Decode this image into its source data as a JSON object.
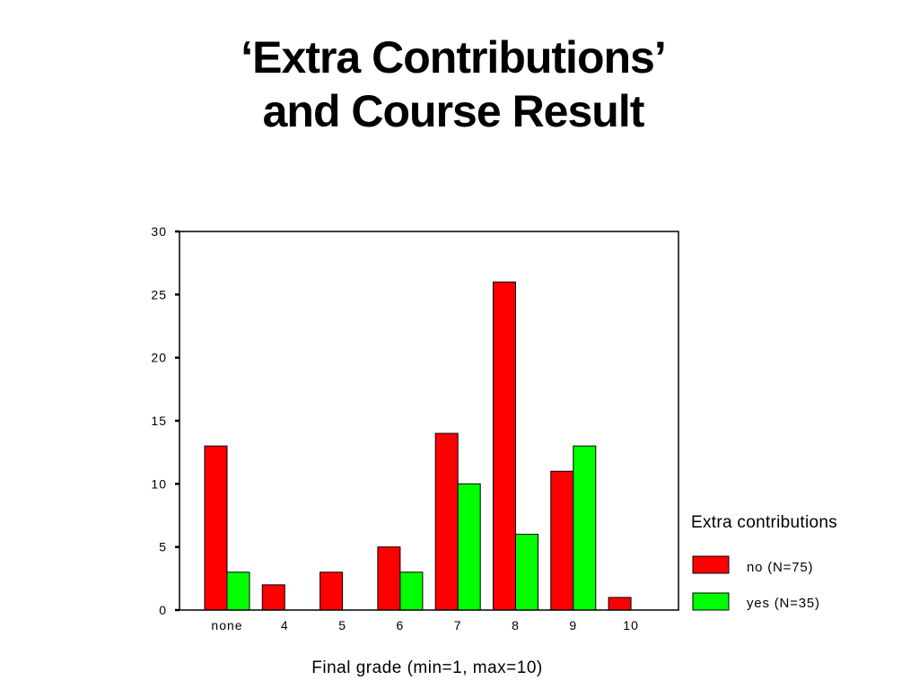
{
  "slide": {
    "title_line1": "‘Extra Contributions’",
    "title_line2": "and Course Result"
  },
  "chart_data": {
    "type": "bar",
    "categories": [
      "none",
      "4",
      "5",
      "6",
      "7",
      "8",
      "9",
      "10"
    ],
    "series": [
      {
        "name": "no  (N=75)",
        "color": "#ff0000",
        "values": [
          13,
          2,
          3,
          5,
          14,
          26,
          11,
          1
        ]
      },
      {
        "name": "yes  (N=35)",
        "color": "#00ff00",
        "values": [
          3,
          0,
          0,
          3,
          10,
          6,
          13,
          0
        ]
      }
    ],
    "xlabel": "Final grade (min=1, max=10)",
    "ylabel": "",
    "ylim": [
      0,
      30
    ],
    "yticks": [
      0,
      5,
      10,
      15,
      20,
      25,
      30
    ],
    "legend_title": "Extra contributions",
    "legend_position": "right",
    "grid": false
  }
}
